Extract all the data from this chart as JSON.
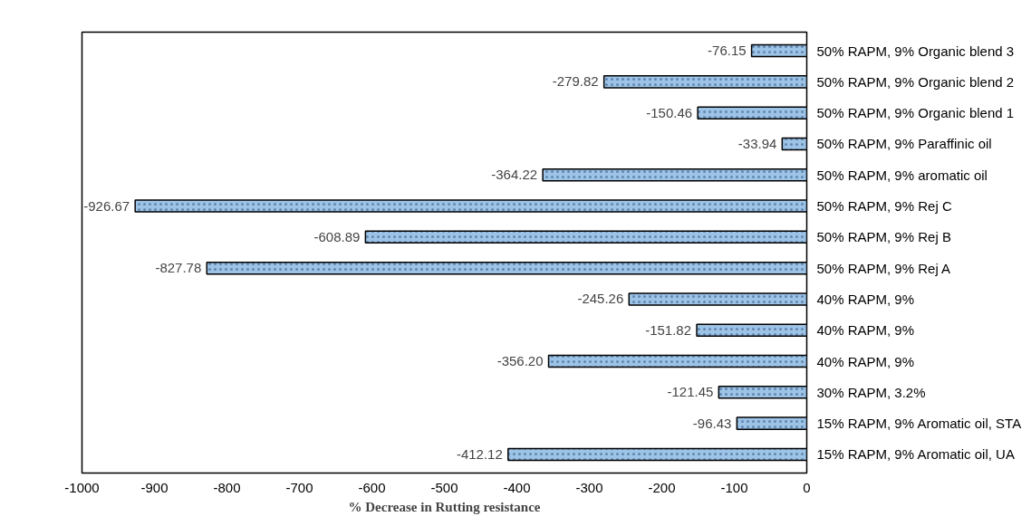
{
  "chart_data": {
    "type": "bar",
    "orientation": "horizontal",
    "xlabel": "% Decrease in Rutting resistance",
    "categories": [
      "50% RAPM, 9% Organic blend 3",
      "50% RAPM, 9% Organic blend 2",
      "50% RAPM, 9% Organic blend 1",
      "50% RAPM, 9% Paraffinic oil",
      "50% RAPM, 9% aromatic oil",
      "50% RAPM, 9% Rej C",
      "50% RAPM, 9% Rej B",
      "50% RAPM, 9% Rej A",
      "40% RAPM, 9%",
      "40% RAPM, 9%",
      "40% RAPM, 9%",
      "30% RAPM, 3.2%",
      "15% RAPM, 9% Aromatic oil, STA",
      "15% RAPM, 9% Aromatic oil, UA"
    ],
    "values": [
      -76.15,
      -279.82,
      -150.46,
      -33.94,
      -364.22,
      -926.67,
      -608.89,
      -827.78,
      -245.26,
      -151.82,
      -356.2,
      -121.45,
      -96.43,
      -412.12
    ],
    "value_labels": [
      "-76.15",
      "-279.82",
      "-150.46",
      "-33.94",
      "-364.22",
      "-926.67",
      "-608.89",
      "-827.78",
      "-245.26",
      "-151.82",
      "-356.20",
      "-121.45",
      "-96.43",
      "-412.12"
    ],
    "color": "#9dc3e6",
    "xlim": [
      -1000,
      0
    ],
    "xticks": [
      -1000,
      -900,
      -800,
      -700,
      -600,
      -500,
      -400,
      -300,
      -200,
      -100,
      0
    ],
    "grid": false
  }
}
